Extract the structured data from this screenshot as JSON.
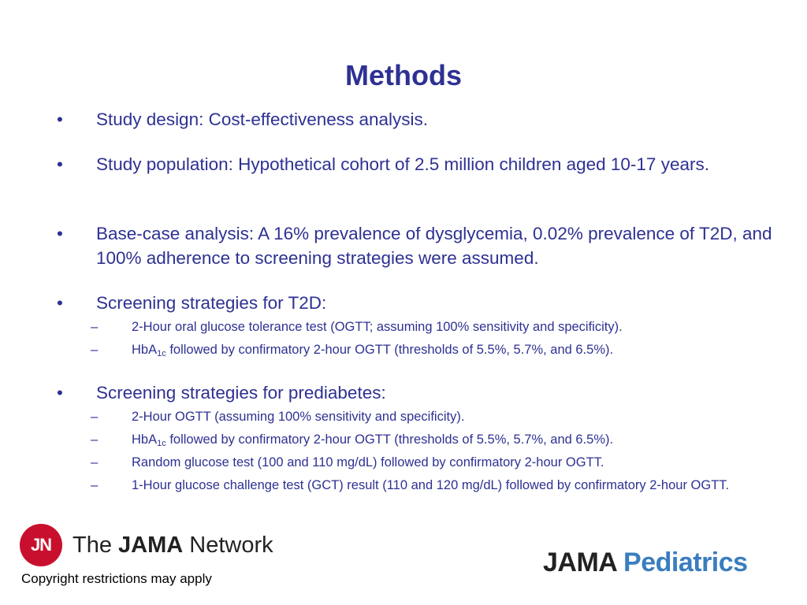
{
  "title": "Methods",
  "bullets": {
    "design": "Study design: Cost-effectiveness analysis.",
    "population": "Study population: Hypothetical cohort of 2.5 million children aged 10-17 years.",
    "base_case": "Base-case analysis: A 16% prevalence of dysglycemia, 0.02% prevalence of T2D, and 100% adherence to screening strategies were assumed.",
    "t2d": {
      "heading": "Screening strategies for T2D:",
      "items": [
        {
          "text": "2-Hour oral glucose tolerance test (OGTT; assuming 100% sensitivity and specificity)."
        },
        {
          "pre": "HbA",
          "sub": "1c",
          "post": " followed by confirmatory 2-hour OGTT (thresholds of 5.5%, 5.7%, and 6.5%)."
        }
      ]
    },
    "prediabetes": {
      "heading": "Screening strategies for prediabetes:",
      "items": [
        {
          "text": "2-Hour OGTT (assuming 100% sensitivity and specificity)."
        },
        {
          "pre": "HbA",
          "sub": "1c",
          "post": " followed by confirmatory 2-hour OGTT (thresholds of 5.5%, 5.7%, and 6.5%)."
        },
        {
          "text": "Random glucose test (100 and 110 mg/dL) followed by confirmatory 2-hour OGTT."
        },
        {
          "text": "1-Hour glucose challenge test (GCT) result (110 and 120 mg/dL) followed by confirmatory 2-hour OGTT."
        }
      ]
    }
  },
  "bullet_char": "•",
  "dash_char": "–",
  "footer": {
    "jn_initials": "JN",
    "jn_the": "The ",
    "jn_jama": "JAMA",
    "jn_network": " Network",
    "copyright": "Copyright restrictions may apply",
    "jama": "JAMA",
    "pediatrics": "Pediatrics"
  }
}
